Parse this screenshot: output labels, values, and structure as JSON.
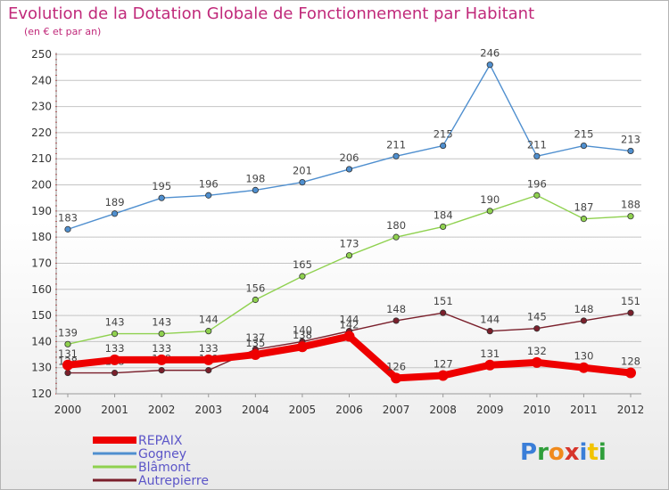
{
  "header": {
    "title": "Evolution de la Dotation Globale de Fonctionnement par Habitant",
    "subtitle": "(en € et par an)"
  },
  "brand": {
    "text": "Proxiti"
  },
  "chart_data": {
    "type": "line",
    "x": [
      2000,
      2001,
      2002,
      2003,
      2004,
      2005,
      2006,
      2007,
      2008,
      2009,
      2010,
      2011,
      2012
    ],
    "ylim": [
      120,
      250
    ],
    "yticks": [
      120,
      130,
      140,
      150,
      160,
      170,
      180,
      190,
      200,
      210,
      220,
      230,
      240,
      250
    ],
    "grid": "horizontal",
    "legend": "bottom-left",
    "series": [
      {
        "name": "Autrepierre",
        "color": "#7a1f2b",
        "values": [
          128,
          128,
          129,
          129,
          137,
          140,
          144,
          148,
          151,
          144,
          145,
          148,
          151
        ]
      },
      {
        "name": "Blâmont",
        "color": "#8fd14f",
        "values": [
          139,
          143,
          143,
          144,
          156,
          165,
          173,
          180,
          184,
          190,
          196,
          187,
          188
        ]
      },
      {
        "name": "Gogney",
        "color": "#4f8fcf",
        "values": [
          183,
          189,
          195,
          196,
          198,
          201,
          206,
          211,
          215,
          246,
          211,
          215,
          213
        ]
      },
      {
        "name": "REPAIX",
        "color": "#ee0000",
        "values": [
          131,
          133,
          133,
          133,
          135,
          138,
          142,
          126,
          127,
          131,
          132,
          130,
          128
        ]
      }
    ]
  }
}
